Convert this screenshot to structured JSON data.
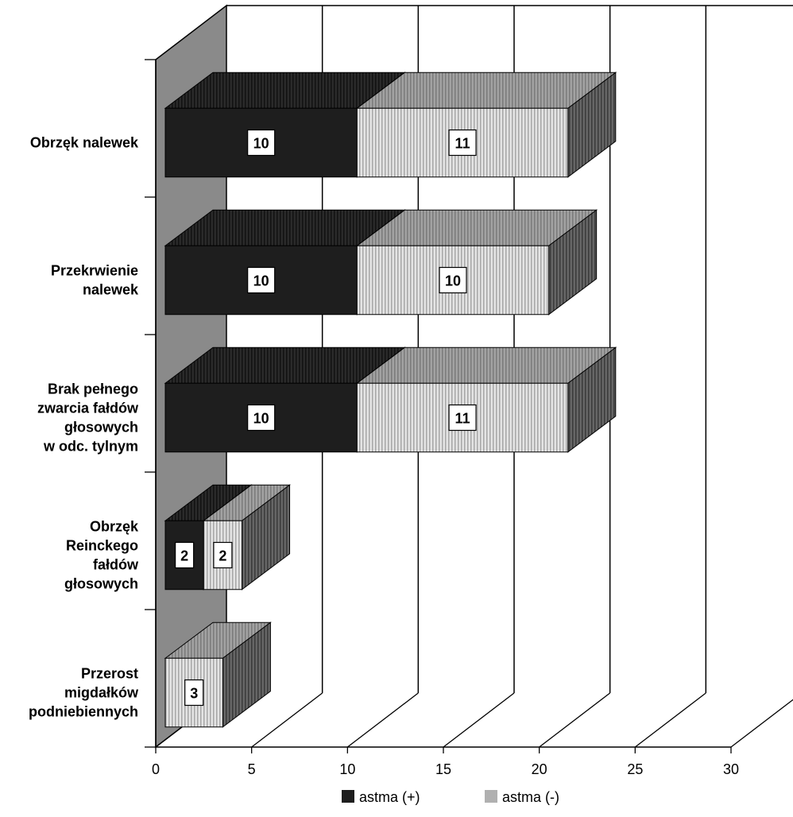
{
  "chart_data": {
    "type": "bar",
    "orientation": "horizontal",
    "stacked": true,
    "style": "3d",
    "categories": [
      "Obrzęk nalewek",
      "Przekrwienie nalewek",
      "Brak pełnego zwarcia fałdów głosowych w odc. tylnym",
      "Obrzęk Reinckego fałdów głosowych",
      "Przerost migdałków podniebiennych"
    ],
    "category_lines": [
      [
        "Obrzęk nalewek"
      ],
      [
        "Przekrwienie",
        "nalewek"
      ],
      [
        "Brak pełnego",
        "zwarcia fałdów",
        "głosowych",
        "w odc. tylnym"
      ],
      [
        "Obrzęk",
        "Reinckego",
        "fałdów",
        "głosowych"
      ],
      [
        "Przerost",
        "migdałków",
        "podniebiennych"
      ]
    ],
    "series": [
      {
        "name": "astma (+)",
        "values": [
          10,
          10,
          10,
          2,
          0
        ],
        "color": "#1e1e1e"
      },
      {
        "name": "astma (-)",
        "values": [
          11,
          10,
          11,
          2,
          3
        ],
        "color": "#d6d6d6"
      }
    ],
    "x_ticks": [
      "0",
      "5",
      "10",
      "15",
      "20",
      "25",
      "30"
    ],
    "xlim": [
      0,
      30
    ],
    "grid": true,
    "legend_position": "bottom"
  }
}
